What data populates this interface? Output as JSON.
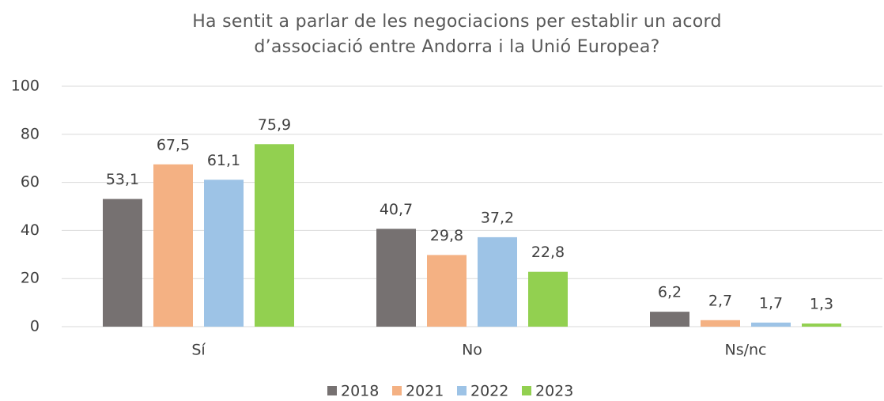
{
  "chart_data": {
    "type": "bar",
    "title": [
      "Ha sentit a parlar de les negociacions per establir un acord",
      "d’associació entre Andorra i la Unió Europea?"
    ],
    "categories": [
      "Sí",
      "No",
      "Ns/nc"
    ],
    "series": [
      {
        "name": "2018",
        "color": "#767171",
        "values": [
          53.1,
          40.7,
          6.2
        ],
        "value_labels": [
          "53,1",
          "40,7",
          "6,2"
        ]
      },
      {
        "name": "2021",
        "color": "#f4b183",
        "values": [
          67.5,
          29.8,
          2.7
        ],
        "value_labels": [
          "67,5",
          "29,8",
          "2,7"
        ]
      },
      {
        "name": "2022",
        "color": "#9dc3e6",
        "values": [
          61.1,
          37.2,
          1.7
        ],
        "value_labels": [
          "61,1",
          "37,2",
          "1,7"
        ]
      },
      {
        "name": "2023",
        "color": "#92d050",
        "values": [
          75.9,
          22.8,
          1.3
        ],
        "value_labels": [
          "75,9",
          "22,8",
          "1,3"
        ]
      }
    ],
    "ylim": [
      0,
      100
    ],
    "yticks": [
      0,
      20,
      40,
      60,
      80,
      100
    ],
    "grid": true,
    "legend": "bottom"
  }
}
